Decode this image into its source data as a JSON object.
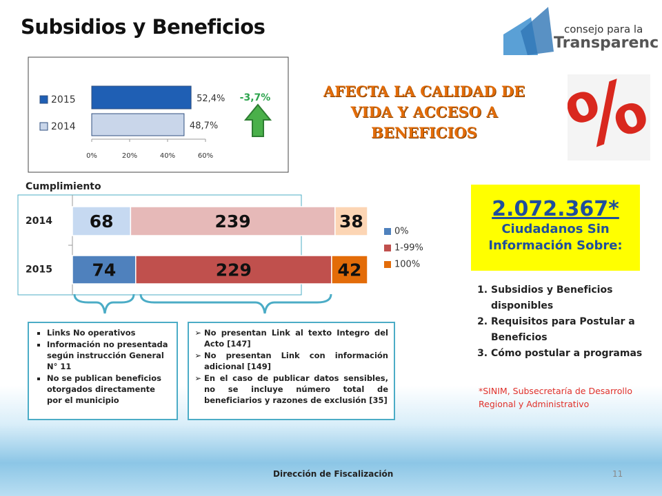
{
  "header": {
    "title": "Subsidios y Beneficios",
    "logo_small": "consejo para la",
    "logo_large": "Transparencia"
  },
  "chart_data": [
    {
      "type": "bar",
      "orientation": "horizontal",
      "categories": [
        "2015",
        "2014"
      ],
      "values": [
        52.4,
        48.7
      ],
      "value_labels": [
        "52,4%",
        "48,7%"
      ],
      "colors": [
        "#1f5fb4",
        "#c9d6ea"
      ],
      "xlim": [
        0,
        60
      ],
      "xticks": [
        {
          "value": 0,
          "label": "0%"
        },
        {
          "value": 20,
          "label": "20%"
        },
        {
          "value": 40,
          "label": "40%"
        },
        {
          "value": 60,
          "label": "60%"
        }
      ],
      "legend": true,
      "annotation": "-3,7%",
      "annotation_color": "#2da44e"
    },
    {
      "type": "stacked_bar",
      "orientation": "horizontal",
      "title": "Cumplimiento",
      "categories": [
        "2014",
        "2015"
      ],
      "series": [
        {
          "name": "0%",
          "color": "#4f81bd",
          "point_colors": [
            "#c6d9f1",
            "#4f81bd"
          ],
          "values": [
            68,
            74
          ]
        },
        {
          "name": "1-99%",
          "color": "#c0504d",
          "point_colors": [
            "#e6b9b8",
            "#c0504d"
          ],
          "values": [
            239,
            229
          ]
        },
        {
          "name": "100%",
          "color": "#e36c09",
          "point_colors": [
            "#fcd5b4",
            "#e36c09"
          ],
          "values": [
            38,
            42
          ]
        }
      ],
      "xlim": [
        0,
        345
      ],
      "legend": "right"
    }
  ],
  "headline": "AFECTA LA CALIDAD DE VIDA Y ACCESO A BENEFICIOS",
  "highlight": {
    "number": "2.072.367*",
    "text": "Ciudadanos Sin Información Sobre:"
  },
  "list": [
    "Subsidios y Beneficios disponibles",
    "Requisitos para Postular a Beneficios",
    "Cómo postular a programas"
  ],
  "source": "*SINIM, Subsecretaría de Desarrollo Regional y Administrativo",
  "left_box": [
    "Links No operativos",
    "Información no presentada según instrucción General N° 11",
    "No se publican beneficios otorgados directamente por el municipio"
  ],
  "right_box": [
    "No presentan Link al texto Integro del Acto [147]",
    "No presentan Link con información adicional [149]",
    "En el caso de publicar datos sensibles, no se incluye número total de beneficiarios y razones de exclusión [35]"
  ],
  "footer": {
    "text": "Dirección de Fiscalización",
    "page": "11"
  }
}
